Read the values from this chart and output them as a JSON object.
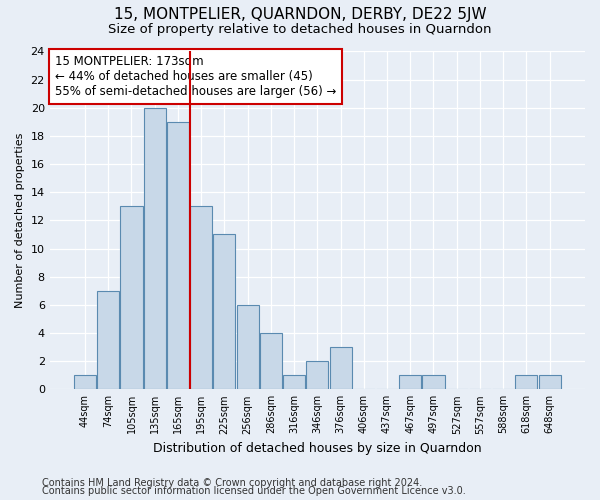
{
  "title": "15, MONTPELIER, QUARNDON, DERBY, DE22 5JW",
  "subtitle": "Size of property relative to detached houses in Quarndon",
  "xlabel": "Distribution of detached houses by size in Quarndon",
  "ylabel": "Number of detached properties",
  "bin_labels": [
    "44sqm",
    "74sqm",
    "105sqm",
    "135sqm",
    "165sqm",
    "195sqm",
    "225sqm",
    "256sqm",
    "286sqm",
    "316sqm",
    "346sqm",
    "376sqm",
    "406sqm",
    "437sqm",
    "467sqm",
    "497sqm",
    "527sqm",
    "557sqm",
    "588sqm",
    "618sqm",
    "648sqm"
  ],
  "bar_heights": [
    1,
    7,
    13,
    20,
    19,
    13,
    11,
    6,
    4,
    1,
    2,
    3,
    0,
    0,
    1,
    1,
    0,
    0,
    0,
    1,
    1
  ],
  "bar_color": "#c8d8e8",
  "bar_edge_color": "#5a8ab0",
  "vline_x_index": 4.5,
  "vline_color": "#cc0000",
  "annotation_line1": "15 MONTPELIER: 173sqm",
  "annotation_line2": "← 44% of detached houses are smaller (45)",
  "annotation_line3": "55% of semi-detached houses are larger (56) →",
  "annotation_box_color": "#ffffff",
  "annotation_box_edge_color": "#cc0000",
  "ylim": [
    0,
    24
  ],
  "yticks": [
    0,
    2,
    4,
    6,
    8,
    10,
    12,
    14,
    16,
    18,
    20,
    22,
    24
  ],
  "footer_line1": "Contains HM Land Registry data © Crown copyright and database right 2024.",
  "footer_line2": "Contains public sector information licensed under the Open Government Licence v3.0.",
  "background_color": "#e8eef6",
  "plot_background_color": "#e8eef6",
  "title_fontsize": 11,
  "subtitle_fontsize": 9.5,
  "ylabel_fontsize": 8,
  "xlabel_fontsize": 9,
  "annotation_fontsize": 8.5,
  "footer_fontsize": 7
}
